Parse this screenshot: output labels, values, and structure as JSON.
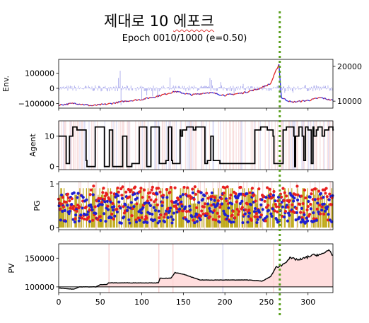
{
  "title": {
    "prefix": "제대로 10 ",
    "underlined": "에포크"
  },
  "subtitle": "Epoch 0010/1000 (e=0.50)",
  "colors": {
    "price": "#222222",
    "price_up": "#e02020",
    "price_down": "#2020e0",
    "volume": "#8c8ce6",
    "agent": "#000000",
    "pg_bar": "#b8a000",
    "pg_red": "#e82020",
    "pg_blue": "#1f1fd0",
    "pv": "#000000",
    "pv_fill": "#ffd6d6",
    "marker_line": "#5aa01e"
  },
  "chart_data": [
    {
      "panel": "env",
      "type": "line",
      "ylabel": "Env.",
      "yticks_left": [
        "100000",
        "0",
        "−100000"
      ],
      "yticks_right": [
        "20000",
        "10000"
      ],
      "ylim_left": [
        -130000,
        190000
      ],
      "ylim_right": [
        8000,
        22000
      ],
      "price_keypoints": [
        [
          0,
          8900
        ],
        [
          20,
          9400
        ],
        [
          40,
          8700
        ],
        [
          60,
          9200
        ],
        [
          80,
          10000
        ],
        [
          100,
          10500
        ],
        [
          120,
          11500
        ],
        [
          140,
          12800
        ],
        [
          160,
          11800
        ],
        [
          180,
          12500
        ],
        [
          200,
          11700
        ],
        [
          220,
          12300
        ],
        [
          240,
          13500
        ],
        [
          255,
          15000
        ],
        [
          262,
          19000
        ],
        [
          265,
          20600
        ],
        [
          268,
          11000
        ],
        [
          280,
          9700
        ],
        [
          300,
          10200
        ],
        [
          315,
          11000
        ],
        [
          330,
          10200
        ]
      ]
    },
    {
      "panel": "agent",
      "type": "step-line",
      "ylabel": "Agent",
      "yticks": [
        "10",
        "0"
      ],
      "ylim": [
        -1,
        15
      ],
      "action_levels": [
        0,
        1,
        2,
        10,
        12,
        13
      ]
    },
    {
      "panel": "pg",
      "type": "scatter+bars",
      "ylabel": "PG",
      "yticks": [
        "1",
        "0"
      ],
      "ylim": [
        -0.05,
        1.05
      ],
      "bar_levels": [
        0.55,
        0.75,
        0.9
      ]
    },
    {
      "panel": "pv",
      "type": "line",
      "ylabel": "PV",
      "yticks": [
        "150000",
        "100000"
      ],
      "ylim": [
        90000,
        175000
      ],
      "baseline": 100000,
      "pv_keypoints": [
        [
          0,
          98000
        ],
        [
          18,
          96000
        ],
        [
          25,
          100000
        ],
        [
          45,
          100000
        ],
        [
          50,
          104000
        ],
        [
          58,
          104000
        ],
        [
          60,
          107000
        ],
        [
          120,
          107000
        ],
        [
          122,
          115000
        ],
        [
          135,
          115000
        ],
        [
          140,
          125000
        ],
        [
          150,
          122000
        ],
        [
          170,
          112000
        ],
        [
          230,
          112000
        ],
        [
          245,
          110000
        ],
        [
          255,
          118000
        ],
        [
          262,
          135000
        ],
        [
          268,
          137000
        ],
        [
          278,
          150000
        ],
        [
          290,
          147000
        ],
        [
          305,
          155000
        ],
        [
          318,
          157000
        ],
        [
          325,
          165000
        ],
        [
          330,
          155000
        ]
      ],
      "xticks": [
        "0",
        "50",
        "100",
        "150",
        "200",
        "250",
        "300"
      ],
      "xlim": [
        0,
        330
      ],
      "marker_x": 266
    }
  ]
}
